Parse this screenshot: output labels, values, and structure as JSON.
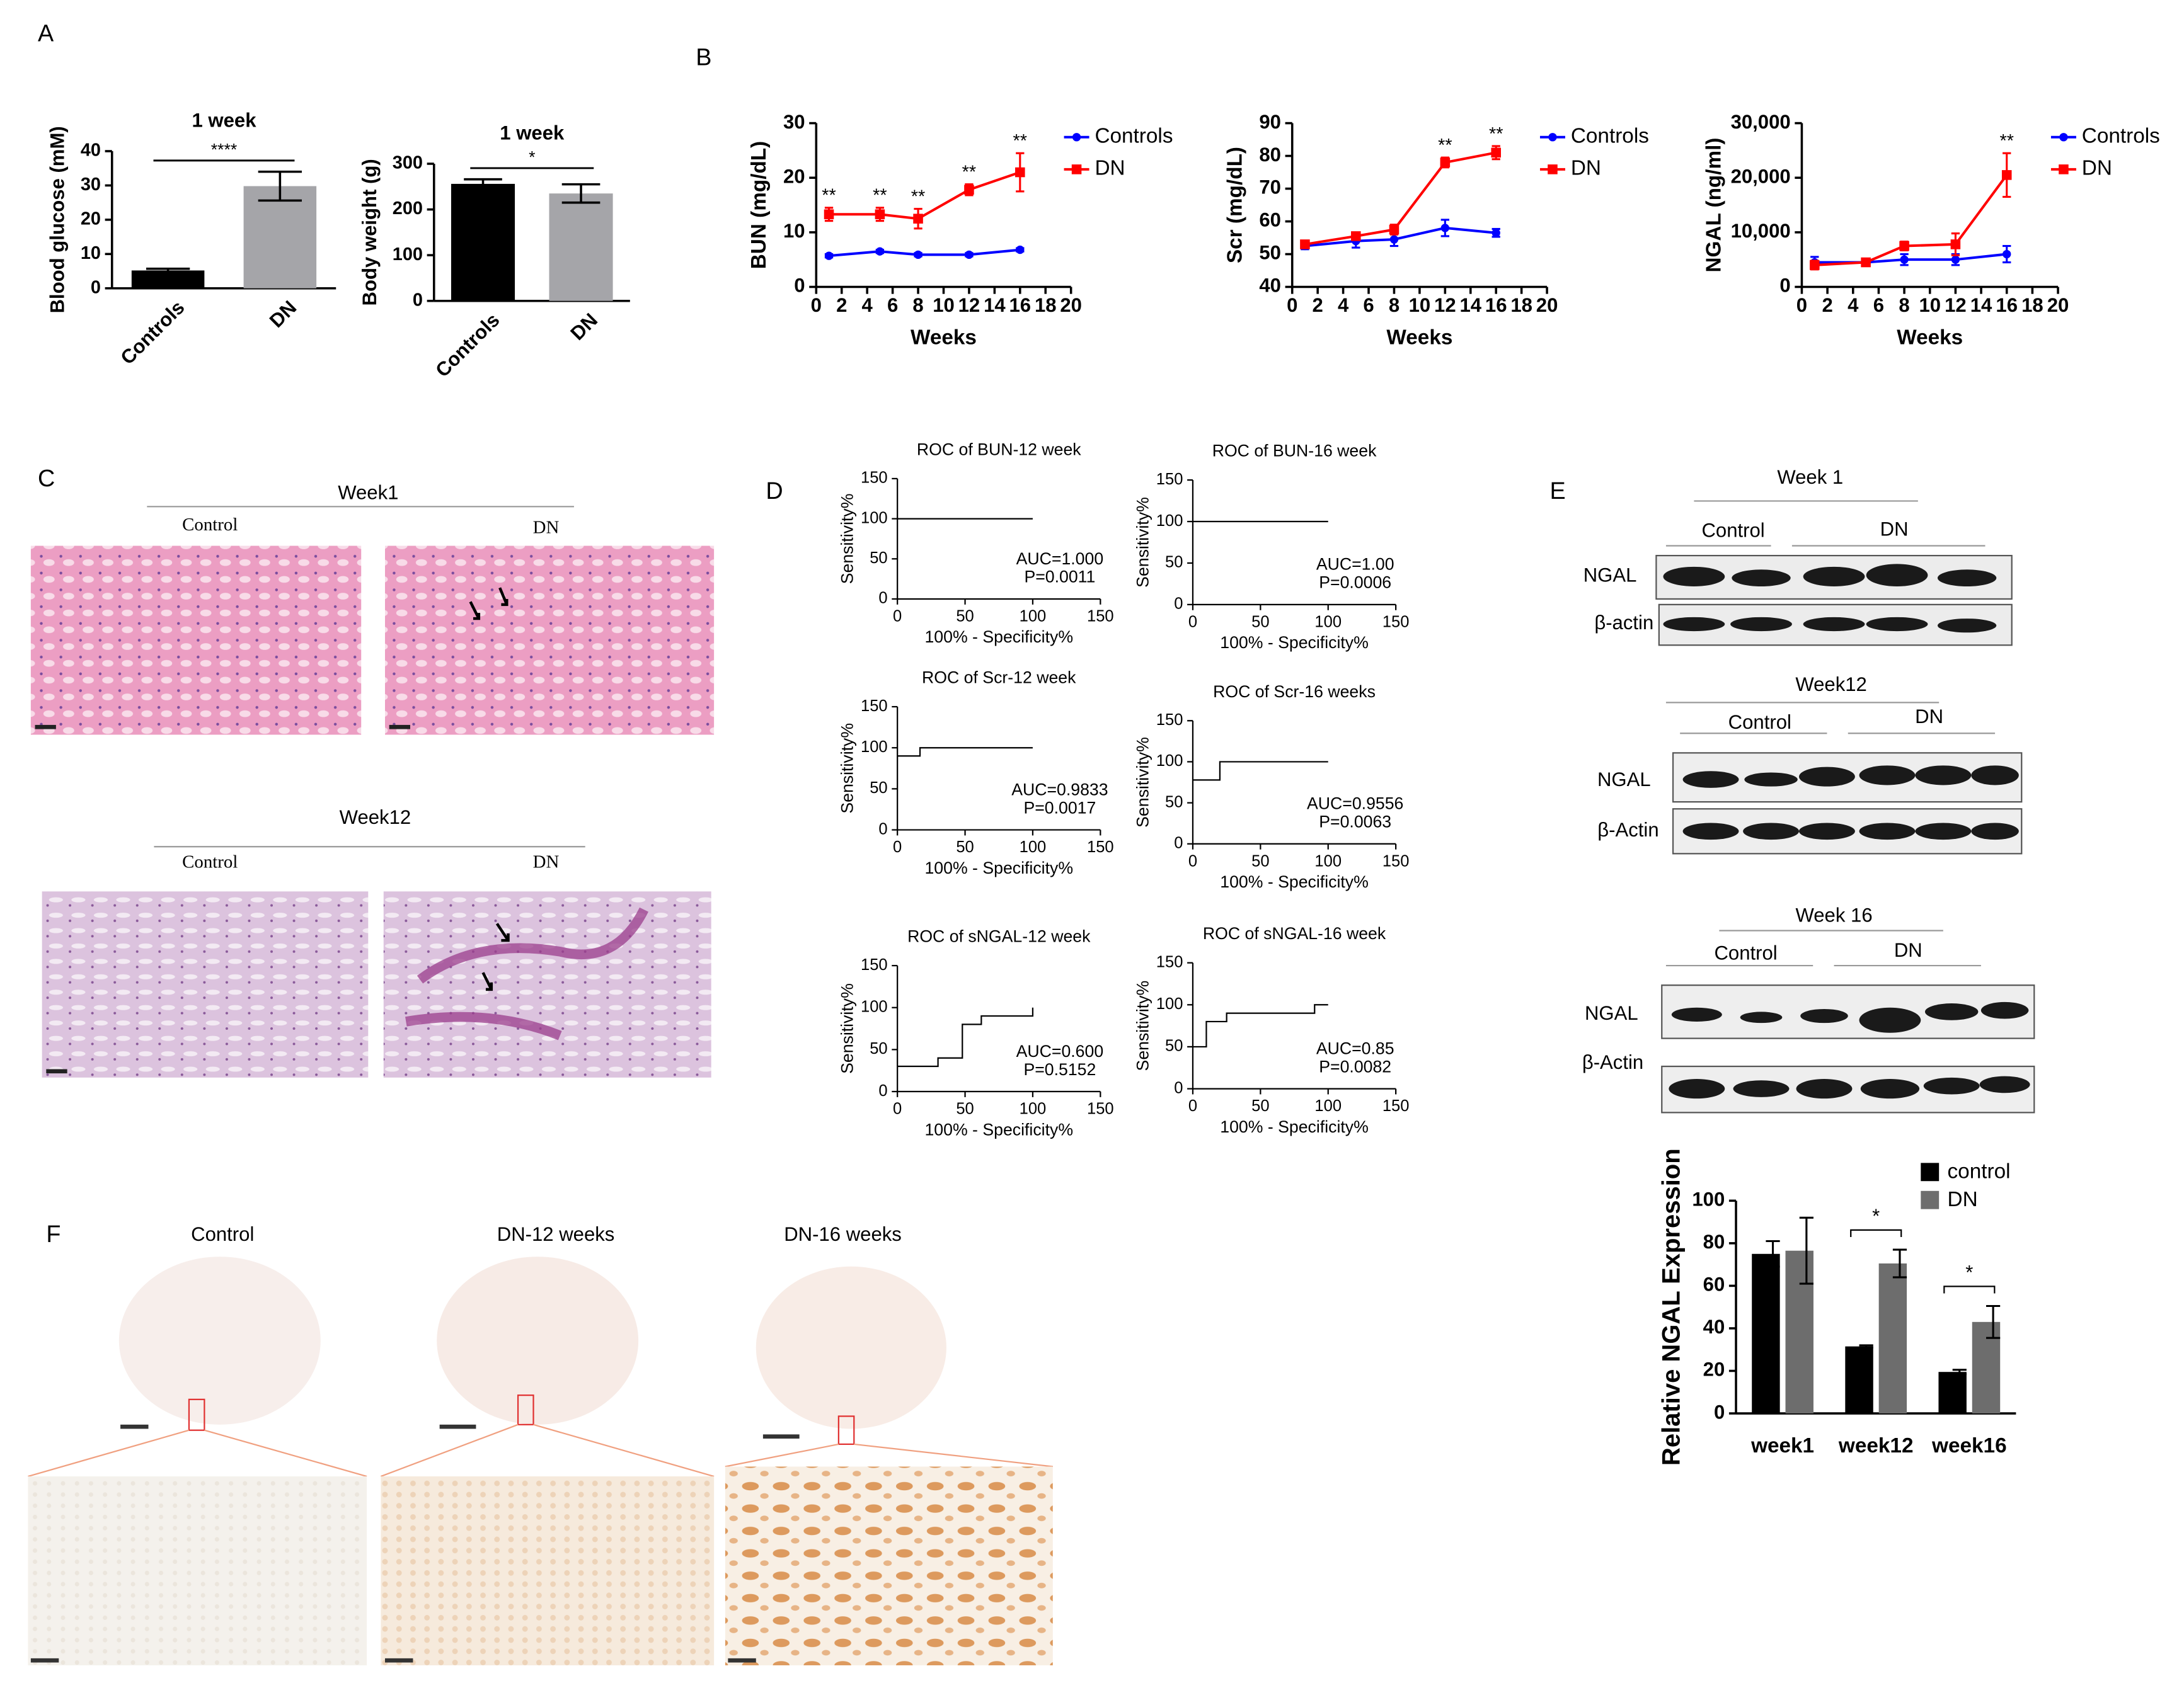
{
  "panel_labels": [
    "A",
    "B",
    "C",
    "D",
    "E",
    "F"
  ],
  "histology": [
    {
      "title": "Week1",
      "labels": [
        "Control",
        "DN"
      ]
    },
    {
      "title": "Week12",
      "labels": [
        "Control",
        "DN"
      ]
    }
  ],
  "blots": [
    {
      "title": "Week 1",
      "groups": [
        "Control",
        "DN"
      ],
      "rows": [
        "NGAL",
        "β-actin"
      ]
    },
    {
      "title": "Week12",
      "groups": [
        "Control",
        "DN"
      ],
      "rows": [
        "NGAL",
        "β-Actin"
      ]
    },
    {
      "title": "Week 16",
      "groups": [
        "Control",
        "DN"
      ],
      "rows": [
        "NGAL",
        "β-Actin"
      ]
    }
  ],
  "ihc": {
    "columns": [
      "Control",
      "DN-12 weeks",
      "DN-16 weeks"
    ]
  },
  "chart_data": [
    {
      "type": "bar",
      "title": "1 week",
      "ylabel": "Blood glucose (mM)",
      "categories": [
        "Controls",
        "DN"
      ],
      "values": [
        5.2,
        29.8
      ],
      "errors": [
        0.5,
        4.2
      ],
      "colors": [
        "#000000",
        "#a5a5a9"
      ],
      "ylim": [
        0,
        40
      ],
      "yticks": [
        0,
        10,
        20,
        30,
        40
      ],
      "significance": "****"
    },
    {
      "type": "bar",
      "title": "1 week",
      "ylabel": "Body weight (g)",
      "categories": [
        "Controls",
        "DN"
      ],
      "values": [
        256,
        235
      ],
      "errors": [
        10,
        20
      ],
      "colors": [
        "#000000",
        "#a5a5a9"
      ],
      "ylim": [
        0,
        300
      ],
      "yticks": [
        0,
        100,
        200,
        300
      ],
      "significance": "*"
    },
    {
      "type": "line",
      "ylabel": "BUN (mg/dL)",
      "xlabel": "Weeks",
      "x": [
        1,
        5,
        8,
        12,
        16
      ],
      "series": [
        {
          "name": "Controls",
          "color": "#0000ff",
          "marker": "circle",
          "values": [
            5.7,
            6.5,
            5.9,
            5.9,
            6.8
          ],
          "errors": [
            0.3,
            0.3,
            0.3,
            0.3,
            0.3
          ]
        },
        {
          "name": "DN",
          "color": "#ff0000",
          "marker": "square",
          "values": [
            13.3,
            13.3,
            12.5,
            17.8,
            21
          ],
          "errors": [
            1.2,
            1.2,
            1.8,
            1,
            3.5
          ]
        }
      ],
      "xlim": [
        0,
        20
      ],
      "xticks": [
        0,
        2,
        4,
        6,
        8,
        10,
        12,
        14,
        16,
        18,
        20
      ],
      "ylim": [
        0,
        30
      ],
      "yticks": [
        0,
        10,
        20,
        30
      ],
      "significance": [
        "**",
        "**",
        "**",
        "**",
        "**"
      ],
      "legend": "outside-right"
    },
    {
      "type": "line",
      "ylabel": "Scr (mg/dL)",
      "xlabel": "Weeks",
      "x": [
        1,
        5,
        8,
        12,
        16
      ],
      "series": [
        {
          "name": "Controls",
          "color": "#0000ff",
          "marker": "circle",
          "values": [
            52.5,
            54,
            54.5,
            58,
            56.5
          ],
          "errors": [
            1,
            2,
            2,
            2.5,
            1.2
          ]
        },
        {
          "name": "DN",
          "color": "#ff0000",
          "marker": "square",
          "values": [
            53,
            55.5,
            57.5,
            78,
            81
          ],
          "errors": [
            1,
            1,
            1.5,
            1.5,
            2
          ]
        }
      ],
      "xlim": [
        0,
        20
      ],
      "xticks": [
        0,
        2,
        4,
        6,
        8,
        10,
        12,
        14,
        16,
        18,
        20
      ],
      "ylim": [
        40,
        90
      ],
      "yticks": [
        40,
        50,
        60,
        70,
        80,
        90
      ],
      "significance": [
        null,
        null,
        null,
        "**",
        "**"
      ],
      "legend": "outside-right"
    },
    {
      "type": "line",
      "ylabel": "NGAL (ng/ml)",
      "xlabel": "Weeks",
      "x": [
        1,
        5,
        8,
        12,
        16
      ],
      "series": [
        {
          "name": "Controls",
          "color": "#0000ff",
          "marker": "circle",
          "values": [
            4500,
            4500,
            5000,
            5000,
            6000
          ],
          "errors": [
            1000,
            300,
            1000,
            1000,
            1500
          ]
        },
        {
          "name": "DN",
          "color": "#ff0000",
          "marker": "square",
          "values": [
            4000,
            4500,
            7500,
            7800,
            20500
          ],
          "errors": [
            800,
            300,
            800,
            2000,
            4000
          ]
        }
      ],
      "xlim": [
        0,
        20
      ],
      "xticks": [
        0,
        2,
        4,
        6,
        8,
        10,
        12,
        14,
        16,
        18,
        20
      ],
      "ylim": [
        0,
        30000
      ],
      "yticks": [
        0,
        {
          "value": 10000,
          "label": "10,000"
        },
        {
          "value": 20000,
          "label": "20,000"
        },
        {
          "value": 30000,
          "label": "30,000"
        }
      ],
      "significance": [
        null,
        null,
        null,
        null,
        "**"
      ],
      "legend": "outside-right"
    },
    {
      "type": "line",
      "title": "ROC of BUN-12 week",
      "xlabel": "100% - Specificity%",
      "ylabel": "Sensitivity%",
      "x": [
        0,
        100
      ],
      "values": [
        100,
        100
      ],
      "color": "#000000",
      "xlim": [
        0,
        150
      ],
      "xticks": [
        0,
        50,
        100,
        150
      ],
      "ylim": [
        0,
        150
      ],
      "yticks": [
        0,
        50,
        100,
        150
      ],
      "annotations": [
        "AUC=1.000",
        "P=0.0011"
      ]
    },
    {
      "type": "line",
      "title": "ROC of BUN-16 week",
      "xlabel": "100% - Specificity%",
      "ylabel": "Sensitivity%",
      "x": [
        0,
        100
      ],
      "values": [
        100,
        100
      ],
      "color": "#000000",
      "xlim": [
        0,
        150
      ],
      "xticks": [
        0,
        50,
        100,
        150
      ],
      "ylim": [
        0,
        150
      ],
      "yticks": [
        0,
        50,
        100,
        150
      ],
      "annotations": [
        "AUC=1.00",
        "P=0.0006"
      ]
    },
    {
      "type": "line",
      "title": "ROC of Scr-12 week",
      "xlabel": "100% - Specificity%",
      "ylabel": "Sensitivity%",
      "x": [
        0,
        16.7,
        16.7,
        100
      ],
      "values": [
        90,
        90,
        100,
        100
      ],
      "color": "#000000",
      "xlim": [
        0,
        150
      ],
      "xticks": [
        0,
        50,
        100,
        150
      ],
      "ylim": [
        0,
        150
      ],
      "yticks": [
        0,
        50,
        100,
        150
      ],
      "annotations": [
        "AUC=0.9833",
        "P=0.0017"
      ]
    },
    {
      "type": "line",
      "title": "ROC of Scr-16 weeks",
      "xlabel": "100% - Specificity%",
      "ylabel": "Sensitivity%",
      "x": [
        0,
        20,
        20,
        100
      ],
      "values": [
        77.8,
        77.8,
        100,
        100
      ],
      "color": "#000000",
      "xlim": [
        0,
        150
      ],
      "xticks": [
        0,
        50,
        100,
        150
      ],
      "ylim": [
        0,
        150
      ],
      "yticks": [
        0,
        50,
        100,
        150
      ],
      "annotations": [
        "AUC=0.9556",
        "P=0.0063"
      ]
    },
    {
      "type": "line",
      "title": "ROC of sNGAL-12 week",
      "xlabel": "100% - Specificity%",
      "ylabel": "Sensitivity%",
      "x": [
        0,
        30,
        30,
        48,
        48,
        62,
        62,
        100,
        100
      ],
      "values": [
        30,
        30,
        40,
        40,
        80,
        80,
        90,
        90,
        100
      ],
      "color": "#000000",
      "xlim": [
        0,
        150
      ],
      "xticks": [
        0,
        50,
        100,
        150
      ],
      "ylim": [
        0,
        150
      ],
      "yticks": [
        0,
        50,
        100,
        150
      ],
      "annotations": [
        "AUC=0.600",
        "P=0.5152"
      ]
    },
    {
      "type": "line",
      "title": "ROC of sNGAL-16 week",
      "xlabel": "100% - Specificity%",
      "ylabel": "Sensitivity%",
      "x": [
        0,
        10,
        10,
        25,
        25,
        90,
        90,
        100
      ],
      "values": [
        50,
        50,
        80,
        80,
        90,
        90,
        100,
        100
      ],
      "color": "#000000",
      "xlim": [
        0,
        150
      ],
      "xticks": [
        0,
        50,
        100,
        150
      ],
      "ylim": [
        0,
        150
      ],
      "yticks": [
        0,
        50,
        100,
        150
      ],
      "annotations": [
        "AUC=0.85",
        "P=0.0082"
      ]
    },
    {
      "type": "bar",
      "ylabel": "Relative NGAL Expression",
      "categories": [
        "week1",
        "week12",
        "week16"
      ],
      "series": [
        {
          "name": "control",
          "color": "#000000",
          "values": [
            75,
            31.5,
            19.5
          ],
          "errors": [
            6,
            0.5,
            1
          ]
        },
        {
          "name": "DN",
          "color": "#6d6d6d",
          "values": [
            76.5,
            70.5,
            43
          ],
          "errors": [
            15.5,
            6.5,
            7.5
          ]
        }
      ],
      "ylim": [
        0,
        100
      ],
      "yticks": [
        0,
        20,
        40,
        60,
        80,
        100
      ],
      "significance": [
        null,
        "*",
        "*"
      ],
      "legend": "upper-right"
    }
  ]
}
